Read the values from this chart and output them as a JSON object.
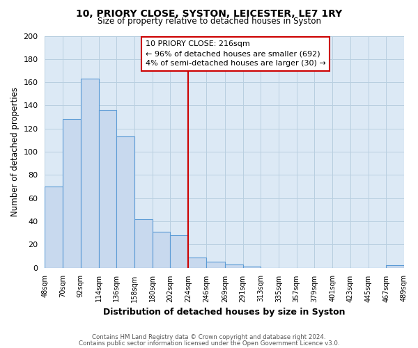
{
  "title": "10, PRIORY CLOSE, SYSTON, LEICESTER, LE7 1RY",
  "subtitle": "Size of property relative to detached houses in Syston",
  "xlabel": "Distribution of detached houses by size in Syston",
  "ylabel": "Number of detached properties",
  "bar_color": "#c8d9ee",
  "bar_edge_color": "#5b9bd5",
  "background_color": "#ffffff",
  "grid_color": "#b8cfe0",
  "plot_bg_color": "#dce9f5",
  "vline_x": 224,
  "vline_color": "#cc0000",
  "bin_edges": [
    48,
    70,
    92,
    114,
    136,
    158,
    180,
    202,
    224,
    246,
    269,
    291,
    313,
    335,
    357,
    379,
    401,
    423,
    445,
    467,
    489
  ],
  "bar_heights": [
    70,
    128,
    163,
    136,
    113,
    42,
    31,
    28,
    9,
    5,
    3,
    1,
    0,
    0,
    0,
    0,
    0,
    0,
    0,
    2
  ],
  "xlim": [
    48,
    489
  ],
  "ylim": [
    0,
    200
  ],
  "yticks": [
    0,
    20,
    40,
    60,
    80,
    100,
    120,
    140,
    160,
    180,
    200
  ],
  "xtick_labels": [
    "48sqm",
    "70sqm",
    "92sqm",
    "114sqm",
    "136sqm",
    "158sqm",
    "180sqm",
    "202sqm",
    "224sqm",
    "246sqm",
    "269sqm",
    "291sqm",
    "313sqm",
    "335sqm",
    "357sqm",
    "379sqm",
    "401sqm",
    "423sqm",
    "445sqm",
    "467sqm",
    "489sqm"
  ],
  "annotation_title": "10 PRIORY CLOSE: 216sqm",
  "annotation_line1": "← 96% of detached houses are smaller (692)",
  "annotation_line2": "4% of semi-detached houses are larger (30) →",
  "annotation_box_color": "#ffffff",
  "annotation_box_edge": "#cc0000",
  "footnote1": "Contains HM Land Registry data © Crown copyright and database right 2024.",
  "footnote2": "Contains public sector information licensed under the Open Government Licence v3.0."
}
